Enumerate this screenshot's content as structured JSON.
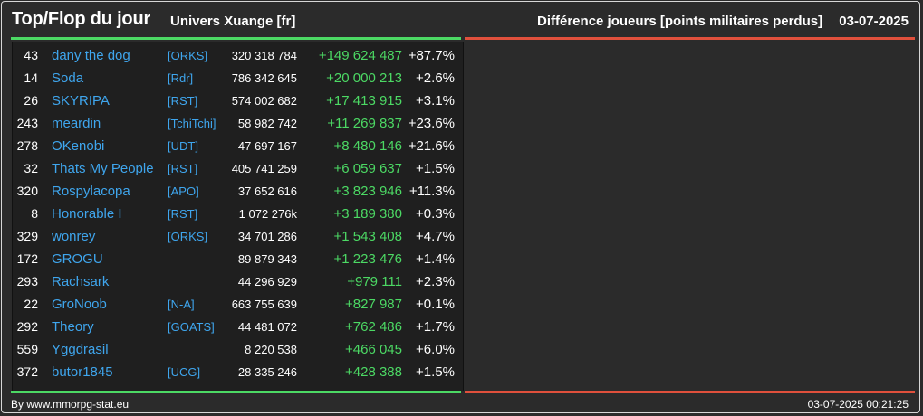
{
  "header": {
    "title": "Top/Flop du jour",
    "universe": "Univers Xuange [fr]",
    "subtitle": "Différence joueurs [points militaires perdus]",
    "date": "03-07-2025"
  },
  "colors": {
    "accent_positive": "#4cd964",
    "accent_negative": "#e0503c",
    "link": "#3fa6ee"
  },
  "top_players": [
    {
      "rank": "43",
      "name": "dany the dog",
      "alliance": "[ORKS]",
      "points": "320 318 784",
      "diff": "+149 624 487",
      "pct": "+87.7%"
    },
    {
      "rank": "14",
      "name": "Soda",
      "alliance": "[Rdr]",
      "points": "786 342 645",
      "diff": "+20 000 213",
      "pct": "+2.6%"
    },
    {
      "rank": "26",
      "name": "SKYRIPA",
      "alliance": "[RST]",
      "points": "574 002 682",
      "diff": "+17 413 915",
      "pct": "+3.1%"
    },
    {
      "rank": "243",
      "name": "meardin",
      "alliance": "[TchiTchi]",
      "points": "58 982 742",
      "diff": "+11 269 837",
      "pct": "+23.6%"
    },
    {
      "rank": "278",
      "name": "OKenobi",
      "alliance": "[UDT]",
      "points": "47 697 167",
      "diff": "+8 480 146",
      "pct": "+21.6%"
    },
    {
      "rank": "32",
      "name": "Thats My People",
      "alliance": "[RST]",
      "points": "405 741 259",
      "diff": "+6 059 637",
      "pct": "+1.5%"
    },
    {
      "rank": "320",
      "name": "Rospylacopa",
      "alliance": "[APO]",
      "points": "37 652 616",
      "diff": "+3 823 946",
      "pct": "+11.3%"
    },
    {
      "rank": "8",
      "name": "Honorable I",
      "alliance": "[RST]",
      "points": "1 072 276k",
      "diff": "+3 189 380",
      "pct": "+0.3%"
    },
    {
      "rank": "329",
      "name": "wonrey",
      "alliance": "[ORKS]",
      "points": "34 701 286",
      "diff": "+1 543 408",
      "pct": "+4.7%"
    },
    {
      "rank": "172",
      "name": "GROGU",
      "alliance": "",
      "points": "89 879 343",
      "diff": "+1 223 476",
      "pct": "+1.4%"
    },
    {
      "rank": "293",
      "name": "Rachsark",
      "alliance": "",
      "points": "44 296 929",
      "diff": "+979 111",
      "pct": "+2.3%"
    },
    {
      "rank": "22",
      "name": "GroNoob",
      "alliance": "[N-A]",
      "points": "663 755 639",
      "diff": "+827 987",
      "pct": "+0.1%"
    },
    {
      "rank": "292",
      "name": "Theory",
      "alliance": "[GOATS]",
      "points": "44 481 072",
      "diff": "+762 486",
      "pct": "+1.7%"
    },
    {
      "rank": "559",
      "name": "Yggdrasil",
      "alliance": "",
      "points": "8 220 538",
      "diff": "+466 045",
      "pct": "+6.0%"
    },
    {
      "rank": "372",
      "name": "butor1845",
      "alliance": "[UCG]",
      "points": "28 335 246",
      "diff": "+428 388",
      "pct": "+1.5%"
    }
  ],
  "footer": {
    "source": "By www.mmorpg-stat.eu",
    "timestamp": "03-07-2025 00:21:25"
  }
}
